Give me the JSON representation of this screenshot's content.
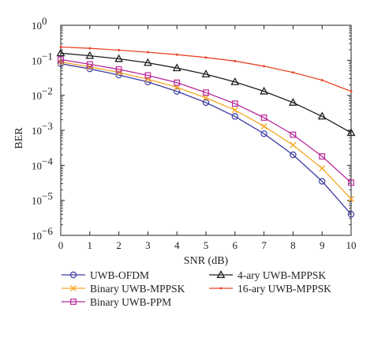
{
  "chart_data": {
    "type": "line",
    "xlabel": "SNR (dB)",
    "ylabel": "BER",
    "x": [
      0,
      1,
      2,
      3,
      4,
      5,
      6,
      7,
      8,
      9,
      10
    ],
    "xlim": [
      0,
      10
    ],
    "ylim": [
      1e-06,
      1
    ],
    "yscale": "log",
    "grid": false,
    "legend_position": "below",
    "x_ticks": [
      "0",
      "1",
      "2",
      "3",
      "4",
      "5",
      "6",
      "7",
      "8",
      "9",
      "10"
    ],
    "y_ticks": [
      {
        "base": "10",
        "exp": "0"
      },
      {
        "base": "10",
        "exp": "−1"
      },
      {
        "base": "10",
        "exp": "−2"
      },
      {
        "base": "10",
        "exp": "−3"
      },
      {
        "base": "10",
        "exp": "−4"
      },
      {
        "base": "10",
        "exp": "−5"
      },
      {
        "base": "10",
        "exp": "−6"
      }
    ],
    "series": [
      {
        "name": "UWB-OFDM",
        "color": "#3b3ba3",
        "marker": "circle",
        "values": [
          0.08,
          0.057,
          0.038,
          0.024,
          0.013,
          0.0062,
          0.0025,
          0.0008,
          0.0002,
          3.5e-05,
          4e-06
        ]
      },
      {
        "name": "Binary UWB-MPPSK",
        "color": "#f5a623",
        "marker": "x",
        "values": [
          0.09,
          0.065,
          0.045,
          0.029,
          0.017,
          0.0085,
          0.0038,
          0.0013,
          0.00038,
          8.2e-05,
          1.1e-05
        ]
      },
      {
        "name": "Binary UWB-PPM",
        "color": "#b7269b",
        "marker": "square",
        "values": [
          0.105,
          0.077,
          0.055,
          0.037,
          0.023,
          0.012,
          0.0058,
          0.0023,
          0.00075,
          0.00018,
          3.2e-05
        ]
      },
      {
        "name": "4-ary UWB-MPPSK",
        "color": "#1f1f1f",
        "marker": "triangle",
        "values": [
          0.16,
          0.135,
          0.11,
          0.085,
          0.06,
          0.04,
          0.024,
          0.013,
          0.0062,
          0.0025,
          0.00085
        ]
      },
      {
        "name": "16-ary UWB-MPPSK",
        "color": "#e8462a",
        "marker": "dot",
        "values": [
          0.24,
          0.22,
          0.195,
          0.17,
          0.145,
          0.12,
          0.095,
          0.068,
          0.045,
          0.027,
          0.013
        ]
      }
    ]
  }
}
